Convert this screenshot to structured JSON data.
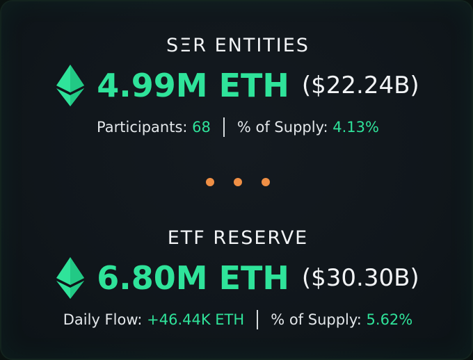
{
  "sections": [
    {
      "title": "SΞR ENTITIES",
      "amount": "4.99M ETH",
      "usd": "($22.24B)",
      "stats": [
        {
          "label": "Participants:",
          "value": "68"
        },
        {
          "label": "% of Supply:",
          "value": "4.13%"
        }
      ]
    },
    {
      "title": "ETF RESERVE",
      "amount": "6.80M ETH",
      "usd": "($30.30B)",
      "stats": [
        {
          "label": "Daily Flow:",
          "value": "+46.44K ETH"
        },
        {
          "label": "% of Supply:",
          "value": "5.62%"
        }
      ]
    }
  ],
  "colors": {
    "accent": "#2fe39a",
    "dots": "#ef8f45",
    "background": "#10161b"
  },
  "icons": {
    "section_icon": "ethereum-diamond-icon",
    "separator": "ellipsis-dots-icon"
  }
}
